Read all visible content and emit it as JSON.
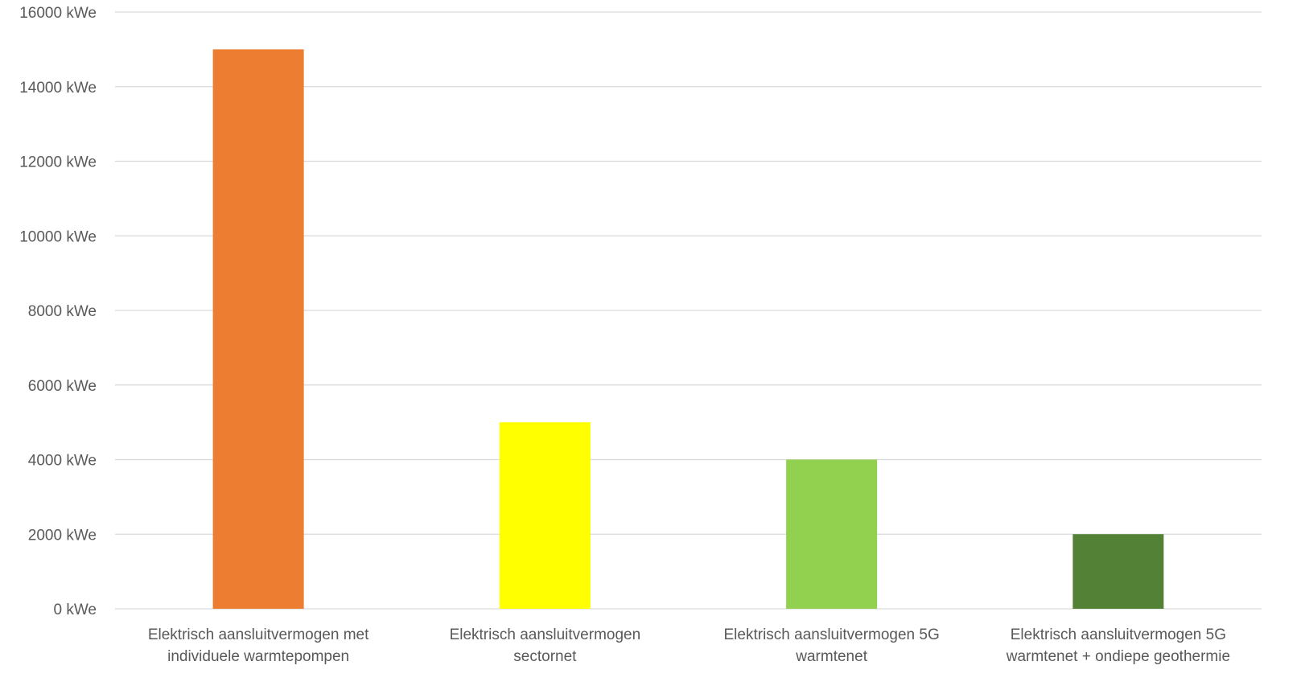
{
  "chart_data": {
    "type": "bar",
    "title": "",
    "xlabel": "",
    "ylabel": "",
    "ylim": [
      0,
      16000
    ],
    "y_ticks": [
      0,
      2000,
      4000,
      6000,
      8000,
      10000,
      12000,
      14000,
      16000
    ],
    "y_tick_labels": [
      "0 kWe",
      "2000 kWe",
      "4000 kWe",
      "6000 kWe",
      "8000 kWe",
      "10000 kWe",
      "12000 kWe",
      "14000 kWe",
      "16000 kWe"
    ],
    "grid": true,
    "legend": "none",
    "categories": [
      [
        "Elektrisch aansluitvermogen met",
        "individuele warmtepompen"
      ],
      [
        "Elektrisch aansluitvermogen",
        "sectornet"
      ],
      [
        "Elektrisch aansluitvermogen 5G",
        "warmtenet"
      ],
      [
        "Elektrisch aansluitvermogen 5G",
        "warmtenet + ondiepe geothermie"
      ]
    ],
    "values": [
      15000,
      5000,
      4000,
      2000
    ],
    "colors": [
      "#ed7d31",
      "#ffff00",
      "#92d050",
      "#538135"
    ]
  }
}
